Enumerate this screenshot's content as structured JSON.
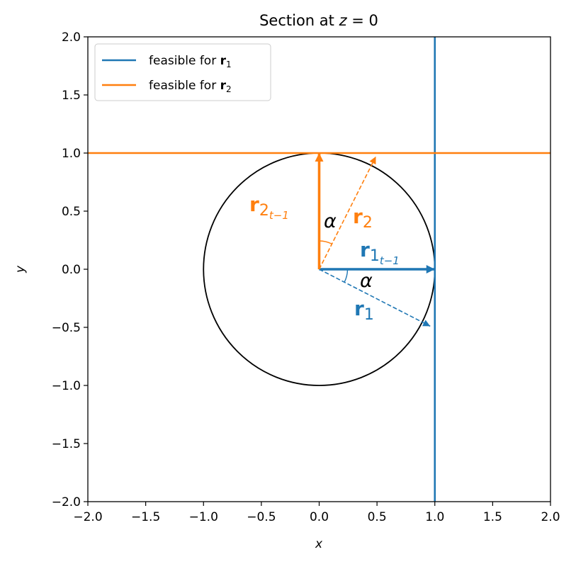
{
  "chart_data": {
    "type": "vector-diagram",
    "title": {
      "text": "Section at ",
      "var": "z",
      "rest": " = 0"
    },
    "x_label": "x",
    "y_label": "y",
    "xlim": [
      -2,
      2
    ],
    "ylim": [
      -2,
      2
    ],
    "xticks": [
      {
        "value": -2,
        "label": "−2.0"
      },
      {
        "value": -1.5,
        "label": "−1.5"
      },
      {
        "value": -1,
        "label": "−1.0"
      },
      {
        "value": -0.5,
        "label": "−0.5"
      },
      {
        "value": 0,
        "label": "0.0"
      },
      {
        "value": 0.5,
        "label": "0.5"
      },
      {
        "value": 1,
        "label": "1.0"
      },
      {
        "value": 1.5,
        "label": "1.5"
      },
      {
        "value": 2,
        "label": "2.0"
      }
    ],
    "yticks": [
      {
        "value": -2,
        "label": "−2.0"
      },
      {
        "value": -1.5,
        "label": "−1.5"
      },
      {
        "value": -1,
        "label": "−1.0"
      },
      {
        "value": -0.5,
        "label": "−0.5"
      },
      {
        "value": 0,
        "label": "0.0"
      },
      {
        "value": 0.5,
        "label": "0.5"
      },
      {
        "value": 1,
        "label": "1.0"
      },
      {
        "value": 1.5,
        "label": "1.5"
      },
      {
        "value": 2,
        "label": "2.0"
      }
    ],
    "legend": "upper left",
    "series": [
      {
        "name": "feasible for ",
        "name_bold": "r",
        "name_sub": "1",
        "color": "#1f77b4",
        "x": [
          1,
          1
        ],
        "y": [
          -2,
          2
        ]
      },
      {
        "name": "feasible for ",
        "name_bold": "r",
        "name_sub": "2",
        "color": "#ff7f0e",
        "x": [
          -2,
          2
        ],
        "y": [
          1,
          1
        ]
      }
    ],
    "circle": {
      "center": [
        0,
        0
      ],
      "radius": 1,
      "color": "#000000"
    },
    "arrows": [
      {
        "label": "r",
        "sub": "1",
        "subsub": "t−1",
        "color": "#1f77b4",
        "style": "solid",
        "x": [
          0,
          1
        ],
        "y": [
          0,
          0
        ]
      },
      {
        "label": "r",
        "sub": "1",
        "color": "#1f77b4",
        "style": "dashed",
        "x": [
          0,
          0.96
        ],
        "y": [
          0,
          -0.49
        ]
      },
      {
        "label": "r",
        "sub": "2",
        "subsub": "t−1",
        "color": "#ff7f0e",
        "style": "solid",
        "x": [
          0,
          0
        ],
        "y": [
          0,
          1
        ]
      },
      {
        "label": "r",
        "sub": "2",
        "color": "#ff7f0e",
        "style": "dashed",
        "x": [
          0,
          0.49
        ],
        "y": [
          0,
          0.97
        ]
      }
    ],
    "angles": [
      {
        "label": "α",
        "color": "#1f77b4",
        "between": [
          0,
          1
        ]
      },
      {
        "label": "α",
        "color": "#ff7f0e",
        "between": [
          2,
          3
        ]
      }
    ]
  }
}
